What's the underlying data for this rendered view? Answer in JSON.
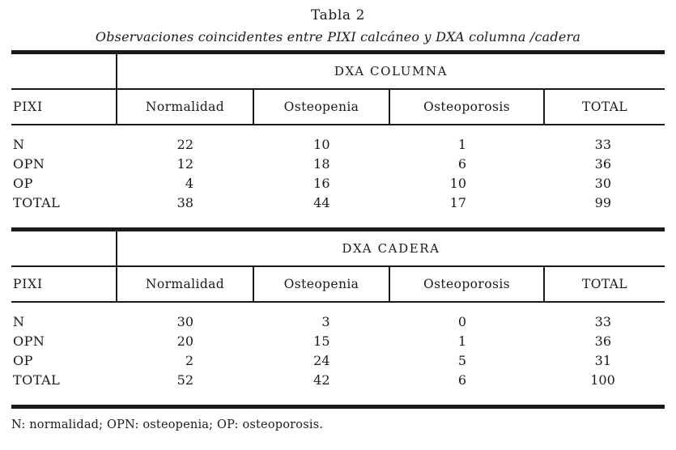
{
  "colors": {
    "ink": "#1a1a1a",
    "background": "#ffffff"
  },
  "title": "Tabla 2",
  "subtitle": "Observaciones coincidentes entre PIXI calcáneo y DXA columna /cadera",
  "tables": [
    {
      "group_header": "DXA COLUMNA",
      "row_header_label": "PIXI",
      "columns": [
        "Normalidad",
        "Osteopenia",
        "Osteoporosis",
        "TOTAL"
      ],
      "rows": [
        {
          "label": "N",
          "values": [
            22,
            10,
            1,
            33
          ]
        },
        {
          "label": "OPN",
          "values": [
            12,
            18,
            6,
            36
          ]
        },
        {
          "label": "OP",
          "values": [
            4,
            16,
            10,
            30
          ]
        },
        {
          "label": "TOTAL",
          "values": [
            38,
            44,
            17,
            99
          ]
        }
      ]
    },
    {
      "group_header": "DXA CADERA",
      "row_header_label": "PIXI",
      "columns": [
        "Normalidad",
        "Osteopenia",
        "Osteoporosis",
        "TOTAL"
      ],
      "rows": [
        {
          "label": "N",
          "values": [
            30,
            3,
            0,
            33
          ]
        },
        {
          "label": "OPN",
          "values": [
            20,
            15,
            1,
            36
          ]
        },
        {
          "label": "OP",
          "values": [
            2,
            24,
            5,
            31
          ]
        },
        {
          "label": "TOTAL",
          "values": [
            52,
            42,
            6,
            100
          ]
        }
      ]
    }
  ],
  "footnote": "N: normalidad; OPN: osteopenia; OP: osteoporosis."
}
